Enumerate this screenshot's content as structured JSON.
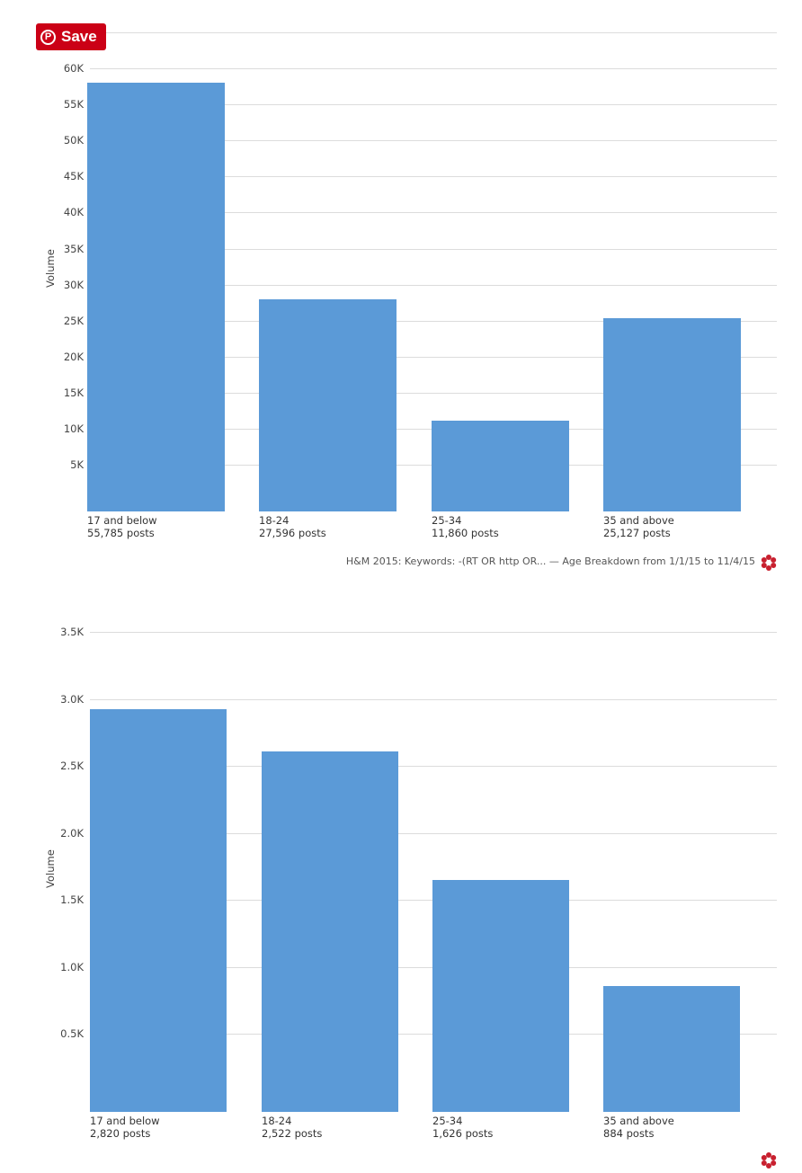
{
  "save_button": {
    "label": "Save",
    "icon": "pinterest-icon",
    "color": "#cb0016"
  },
  "chart_data": [
    {
      "type": "bar",
      "ylabel": "Volume",
      "yticks": [
        "5K",
        "10K",
        "15K",
        "20K",
        "25K",
        "30K",
        "35K",
        "40K",
        "45K",
        "50K",
        "55K",
        "60K"
      ],
      "categories": [
        "17 and below",
        "18-24",
        "25-34",
        "35 and above"
      ],
      "category_sublabels": [
        "55,785 posts",
        "27,596 posts",
        "11,860 posts",
        "25,127 posts"
      ],
      "values": [
        55785,
        27596,
        11860,
        25127
      ],
      "ylim": [
        0,
        60000
      ],
      "grid": true,
      "bar_color": "#5b9ad7",
      "footer": "H&M 2015: Keywords: -(RT OR http OR... — Age Breakdown from 1/1/15 to 11/4/15"
    },
    {
      "type": "bar",
      "ylabel": "Volume",
      "yticks": [
        "0.5K",
        "1.0K",
        "1.5K",
        "2.0K",
        "2.5K",
        "3.0K",
        "3.5K"
      ],
      "categories": [
        "17 and below",
        "18-24",
        "25-34",
        "35 and above"
      ],
      "category_sublabels": [
        "2,820 posts",
        "2,522 posts",
        "1,626 posts",
        "884 posts"
      ],
      "values": [
        2820,
        2522,
        1626,
        884
      ],
      "ylim": [
        0,
        3500
      ],
      "grid": true,
      "bar_color": "#5b9ad7"
    }
  ]
}
